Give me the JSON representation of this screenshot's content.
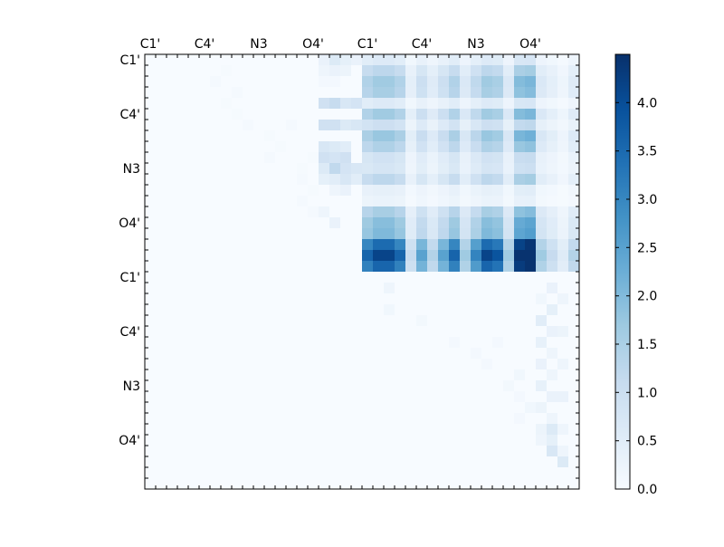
{
  "chart_data": {
    "type": "heatmap",
    "title": "",
    "xlabel": "",
    "ylabel": "",
    "colormap": "Blues",
    "colormap_stops": [
      "#f7fbff",
      "#deebf7",
      "#c6dbef",
      "#9ecae1",
      "#6baed6",
      "#4292c6",
      "#2171b5",
      "#08519c",
      "#08306b"
    ],
    "grid_size": 40,
    "x_tick_labels": [
      "C1'",
      "C4'",
      "N3",
      "O4'",
      "C1'",
      "C4'",
      "N3",
      "O4'"
    ],
    "y_tick_labels": [
      "C1'",
      "C4'",
      "N3",
      "O4'",
      "C1'",
      "C4'",
      "N3",
      "O4'"
    ],
    "tick_positions": [
      0.5,
      5.5,
      10.5,
      15.5,
      20.5,
      25.5,
      30.5,
      35.5
    ],
    "colorbar": {
      "vmin": 0.0,
      "vmax": 4.5,
      "ticks": [
        0.0,
        0.5,
        1.0,
        1.5,
        2.0,
        2.5,
        3.0,
        3.5,
        4.0
      ],
      "tick_labels": [
        "0.0",
        "0.5",
        "1.0",
        "1.5",
        "2.0",
        "2.5",
        "3.0",
        "3.5",
        "4.0"
      ]
    },
    "row_profile": [
      0.6,
      1.3,
      1.7,
      1.6,
      0.6,
      1.7,
      1.0,
      1.8,
      1.5,
      0.9,
      0.8,
      1.3,
      0.4,
      0.3,
      1.6,
      2.0,
      2.1,
      3.6,
      4.3,
      3.7
    ],
    "col_profile": [
      1.3,
      1.5,
      1.5,
      1.3,
      0.4,
      0.9,
      0.5,
      0.9,
      1.3,
      0.6,
      1.1,
      1.5,
      1.4,
      0.6,
      1.8,
      1.9,
      0.6,
      0.4,
      0.2,
      0.5
    ],
    "lower_right_values": [
      [
        21,
        22,
        0.2
      ],
      [
        23,
        22,
        0.15
      ],
      [
        24,
        25,
        0.12
      ],
      [
        26,
        28,
        0.1
      ],
      [
        27,
        30,
        0.1
      ],
      [
        28,
        31,
        0.1
      ],
      [
        30,
        33,
        0.12
      ],
      [
        31,
        34,
        0.1
      ],
      [
        33,
        34,
        0.1
      ],
      [
        35,
        36,
        0.2
      ],
      [
        22,
        36,
        0.15
      ],
      [
        23,
        37,
        0.4
      ],
      [
        24,
        36,
        0.5
      ],
      [
        25,
        37,
        0.3
      ],
      [
        26,
        36,
        0.35
      ],
      [
        27,
        37,
        0.2
      ],
      [
        28,
        36,
        0.3
      ],
      [
        29,
        37,
        0.2
      ],
      [
        30,
        36,
        0.35
      ],
      [
        31,
        37,
        0.3
      ],
      [
        32,
        36,
        0.25
      ],
      [
        33,
        37,
        0.2
      ],
      [
        34,
        36,
        0.25
      ],
      [
        34,
        37,
        0.6
      ],
      [
        35,
        37,
        0.4
      ],
      [
        36,
        37,
        0.7
      ],
      [
        26,
        32,
        0.1
      ],
      [
        29,
        34,
        0.15
      ],
      [
        32,
        35,
        0.15
      ],
      [
        21,
        37,
        0.3
      ],
      [
        22,
        38,
        0.2
      ],
      [
        25,
        38,
        0.25
      ],
      [
        28,
        38,
        0.2
      ],
      [
        31,
        38,
        0.3
      ],
      [
        34,
        38,
        0.2
      ],
      [
        36,
        38,
        0.2
      ],
      [
        37,
        38,
        0.6
      ]
    ],
    "upper_left_values": [
      [
        1,
        7,
        0.05
      ],
      [
        2,
        6,
        0.06
      ],
      [
        3,
        8,
        0.06
      ],
      [
        4,
        7,
        0.05
      ],
      [
        5,
        8,
        0.05
      ],
      [
        6,
        13,
        0.06
      ],
      [
        7,
        11,
        0.05
      ],
      [
        6,
        9,
        0.06
      ],
      [
        8,
        12,
        0.05
      ],
      [
        9,
        11,
        0.06
      ],
      [
        9,
        15,
        0.05
      ],
      [
        10,
        14,
        0.05
      ],
      [
        11,
        14,
        0.06
      ],
      [
        12,
        15,
        0.05
      ],
      [
        13,
        14,
        0.06
      ],
      [
        14,
        15,
        0.06
      ]
    ]
  }
}
